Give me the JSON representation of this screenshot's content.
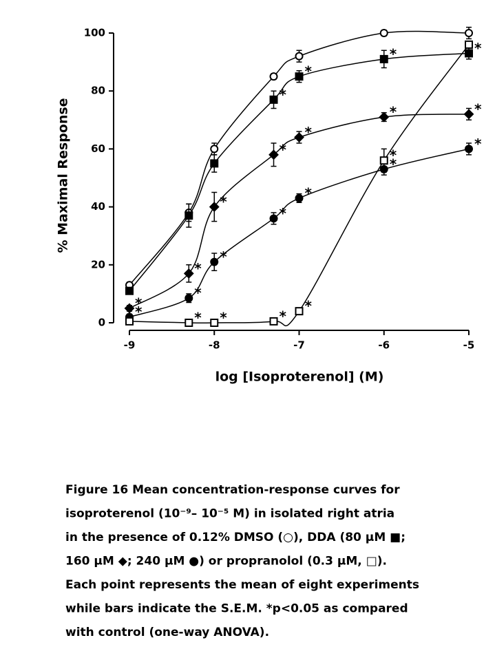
{
  "chart_data": {
    "type": "line",
    "xlabel": "log [Isoproterenol] (M)",
    "ylabel": "% Maximal Response",
    "x": [
      -9,
      -8.3,
      -8,
      -7.3,
      -7,
      -6,
      -5
    ],
    "xlim": [
      -9,
      -5
    ],
    "xticks": [
      -9,
      -8,
      -7,
      -6,
      -5
    ],
    "ylim": [
      0,
      100
    ],
    "yticks": [
      0,
      20,
      40,
      60,
      80,
      100
    ],
    "significance_mark": "*",
    "series": [
      {
        "marker": "circle-open",
        "color": "#000000",
        "values": [
          13,
          38,
          60,
          85,
          92,
          100,
          100
        ],
        "errors": [
          1,
          3,
          2,
          1,
          2,
          1,
          2
        ],
        "significant": [
          false,
          false,
          false,
          false,
          false,
          false,
          false
        ]
      },
      {
        "marker": "square-filled",
        "color": "#000000",
        "values": [
          11,
          37,
          55,
          77,
          85,
          91,
          93
        ],
        "errors": [
          1,
          4,
          3,
          3,
          2,
          3,
          2
        ],
        "significant": [
          false,
          false,
          false,
          true,
          true,
          true,
          true
        ]
      },
      {
        "marker": "diamond-filled",
        "color": "#000000",
        "values": [
          5,
          17,
          40,
          58,
          64,
          71,
          72
        ],
        "errors": [
          1,
          3,
          5,
          4,
          2,
          1.5,
          2
        ],
        "significant": [
          true,
          true,
          true,
          true,
          true,
          true,
          true
        ]
      },
      {
        "marker": "circle-filled",
        "color": "#000000",
        "values": [
          2,
          8.5,
          21,
          36,
          43,
          53,
          60
        ],
        "errors": [
          1,
          1.5,
          3,
          2,
          1.5,
          2,
          2
        ],
        "significant": [
          true,
          true,
          true,
          true,
          true,
          true,
          true
        ]
      },
      {
        "marker": "square-open",
        "color": "#000000",
        "values": [
          0.5,
          0,
          0,
          0.5,
          4,
          56,
          96
        ],
        "errors": [
          1,
          0.5,
          0.5,
          0.5,
          1,
          4,
          1
        ],
        "significant": [
          false,
          true,
          true,
          true,
          true,
          true,
          false
        ]
      }
    ]
  },
  "caption": {
    "lines": [
      "Figure 16  Mean concentration-response curves for",
      "isoproterenol (10⁻⁹– 10⁻⁵  M) in isolated right atria",
      "in the presence of 0.12% DMSO (○), DDA (80 µM ■;",
      "160 µM ◆; 240 µM ●) or propranolol (0.3 µM, □).",
      "Each point represents the mean of eight experiments",
      "while bars indicate the S.E.M.  *p<0.05 as compared",
      "with control (one-way ANOVA)."
    ]
  }
}
